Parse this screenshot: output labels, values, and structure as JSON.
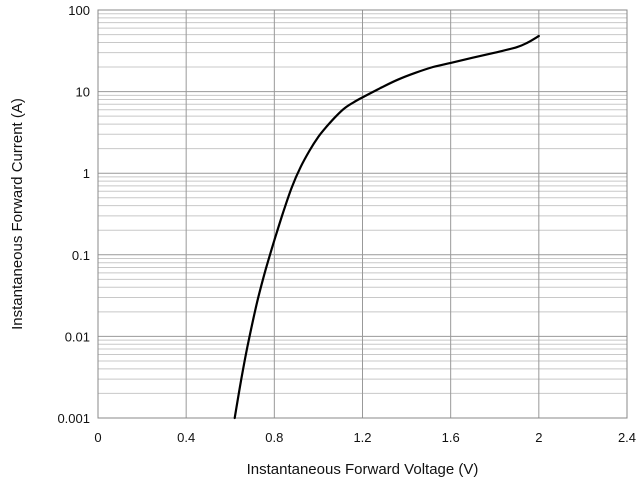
{
  "chart_data": {
    "type": "line",
    "title": "",
    "xlabel": "Instantaneous Forward Voltage (V)",
    "ylabel": "Instantaneous Forward Current (A)",
    "xlim": [
      0,
      2.4
    ],
    "ylim": [
      0.001,
      100
    ],
    "yscale": "log",
    "grid": true,
    "legend": "none",
    "x_ticks": [
      "0",
      "0.4",
      "0.8",
      "1.2",
      "1.6",
      "2",
      "2.4"
    ],
    "y_ticks": [
      "0.001",
      "0.01",
      "0.1",
      "1",
      "10",
      "100"
    ],
    "series": [
      {
        "x": [
          0.62,
          0.65,
          0.68,
          0.72,
          0.76,
          0.8,
          0.84,
          0.88,
          0.92,
          0.96,
          1.0,
          1.04,
          1.08,
          1.12,
          1.16,
          1.2,
          1.28,
          1.36,
          1.44,
          1.52,
          1.6,
          1.7,
          1.8,
          1.9,
          1.95,
          2.0
        ],
        "y": [
          0.001,
          0.003,
          0.008,
          0.025,
          0.065,
          0.15,
          0.33,
          0.68,
          1.2,
          1.9,
          2.8,
          3.8,
          5.0,
          6.3,
          7.4,
          8.5,
          11.0,
          14.0,
          17.0,
          20.0,
          22.5,
          26.0,
          30.0,
          35.0,
          40.0,
          48.0
        ]
      }
    ],
    "colors": {
      "line": "#000000",
      "grid": "#999999",
      "minor_grid": "#c8c8c8"
    }
  }
}
